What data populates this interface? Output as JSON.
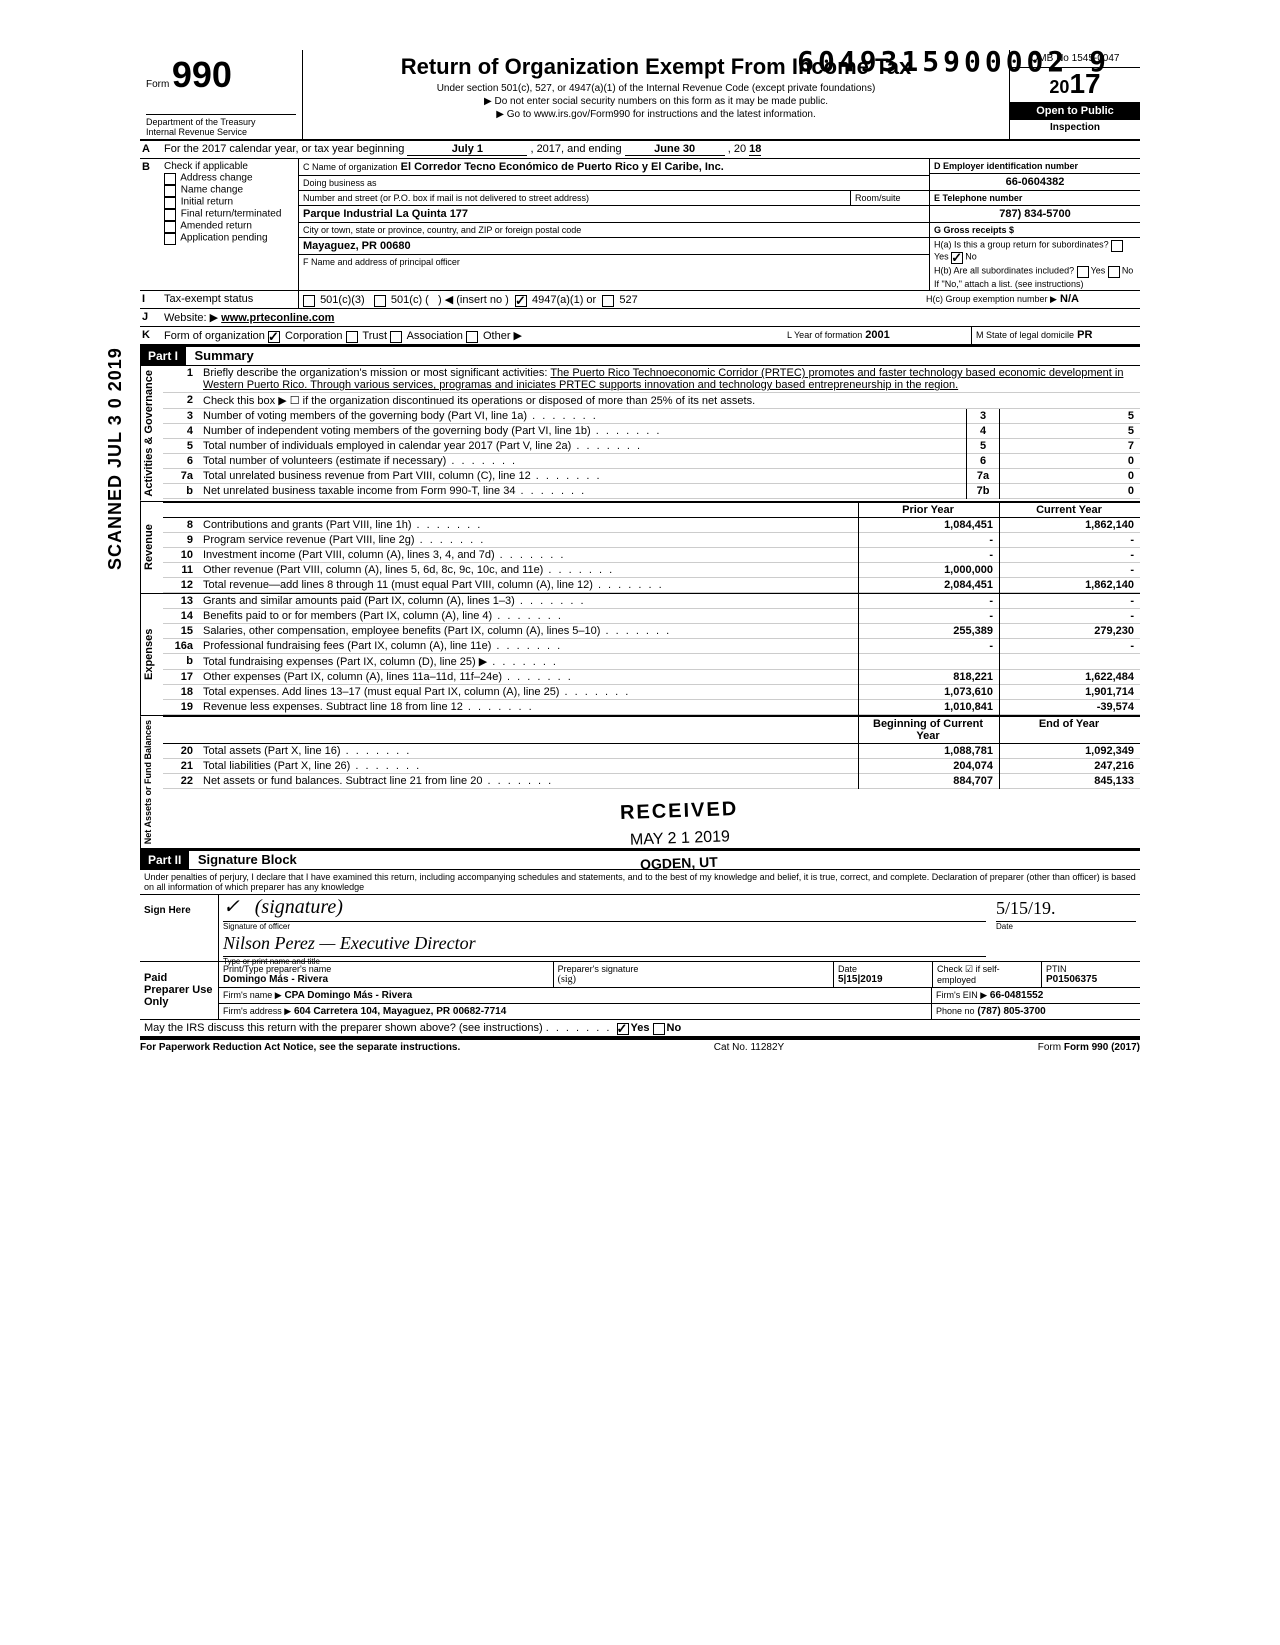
{
  "doc_id": "6049315900002 9",
  "scanned_date": "SCANNED  JUL 3 0 2019",
  "form": {
    "number": "990",
    "form_word": "Form",
    "dept": "Department of the Treasury",
    "irs": "Internal Revenue Service",
    "title": "Return of Organization Exempt From Income Tax",
    "sub1": "Under section 501(c), 527, or 4947(a)(1) of the Internal Revenue Code (except private foundations)",
    "sub2": "▶ Do not enter social security numbers on this form as it may be made public.",
    "sub3": "▶ Go to www.irs.gov/Form990 for instructions and the latest information.",
    "omb": "OMB No 1545-0047",
    "year": "2017",
    "open_public": "Open to Public",
    "inspection": "Inspection"
  },
  "row_a": {
    "label": "A",
    "text_pre": "For the 2017 calendar year, or tax year beginning",
    "begin": "July 1",
    "mid": ", 2017, and ending",
    "end": "June 30",
    "year_suffix": ", 20",
    "year_val": "18"
  },
  "row_b": {
    "label": "B",
    "check_label": "Check if applicable",
    "items": [
      "Address change",
      "Name change",
      "Initial return",
      "Final return/terminated",
      "Amended return",
      "Application pending"
    ]
  },
  "row_c": {
    "label_c": "C Name of organization",
    "org": "El Corredor Tecno Económico de Puerto Rico y El Caribe, Inc.",
    "dba_label": "Doing business as",
    "addr_label": "Number and street (or P.O. box if mail is not delivered to street address)",
    "room_label": "Room/suite",
    "addr": "Parque Industrial La Quinta 177",
    "city_label": "City or town, state or province, country, and ZIP or foreign postal code",
    "city": "Mayaguez, PR 00680",
    "f_label": "F Name and address of principal officer"
  },
  "row_d": {
    "label": "D Employer identification number",
    "val": "66-0604382"
  },
  "row_e": {
    "label": "E Telephone number",
    "val": "787) 834-5700"
  },
  "row_g": {
    "label": "G Gross receipts $"
  },
  "row_h": {
    "ha": "H(a) Is this a group return for subordinates?",
    "hb": "H(b) Are all subordinates included?",
    "hnote": "If \"No,\" attach a list. (see instructions)",
    "hc": "H(c) Group exemption number ▶",
    "hc_val": "N/A"
  },
  "row_i": {
    "label": "I",
    "text": "Tax-exempt status",
    "opts": [
      "501(c)(3)",
      "501(c) (",
      "4947(a)(1) or",
      "527"
    ],
    "insert": "◀ (insert no )"
  },
  "row_j": {
    "label": "J",
    "text": "Website: ▶",
    "val": "www.prteconline.com"
  },
  "row_k": {
    "label": "K",
    "text": "Form of organization",
    "opts": [
      "Corporation",
      "Trust",
      "Association",
      "Other ▶"
    ],
    "yof": "L Year of formation",
    "yof_val": "2001",
    "state": "M State of legal domicile",
    "state_val": "PR"
  },
  "part1": {
    "header": "Part I",
    "title": "Summary",
    "line1_lbl": "1",
    "line1": "Briefly describe the organization's mission or most significant activities:",
    "mission": "The Puerto Rico Technoeconomic Corridor (PRTEC) promotes and faster technology based economic development in Western Puerto Rico. Through various services, programas and iniciates PRTEC supports innovation and technology based entrepreneurship in the region.",
    "line2_lbl": "2",
    "line2": "Check this box ▶ ☐ if the organization discontinued its operations or disposed of more than 25% of its net assets.",
    "gov_label": "Activities & Governance",
    "rev_label": "Revenue",
    "exp_label": "Expenses",
    "net_label": "Net Assets or\nFund Balances",
    "prior_year": "Prior Year",
    "current_year": "Current Year",
    "beg_year": "Beginning of Current Year",
    "end_year": "End of Year",
    "rows_gov": [
      {
        "n": "3",
        "d": "Number of voting members of the governing body (Part VI, line 1a)",
        "box": "3",
        "v": "5"
      },
      {
        "n": "4",
        "d": "Number of independent voting members of the governing body (Part VI, line 1b)",
        "box": "4",
        "v": "5"
      },
      {
        "n": "5",
        "d": "Total number of individuals employed in calendar year 2017 (Part V, line 2a)",
        "box": "5",
        "v": "7"
      },
      {
        "n": "6",
        "d": "Total number of volunteers (estimate if necessary)",
        "box": "6",
        "v": "0"
      },
      {
        "n": "7a",
        "d": "Total unrelated business revenue from Part VIII, column (C), line 12",
        "box": "7a",
        "v": "0"
      },
      {
        "n": "b",
        "d": "Net unrelated business taxable income from Form 990-T, line 34",
        "box": "7b",
        "v": "0"
      }
    ],
    "rows_rev": [
      {
        "n": "8",
        "d": "Contributions and grants (Part VIII, line 1h)",
        "p": "1,084,451",
        "c": "1,862,140"
      },
      {
        "n": "9",
        "d": "Program service revenue (Part VIII, line 2g)",
        "p": "-",
        "c": "-"
      },
      {
        "n": "10",
        "d": "Investment income (Part VIII, column (A), lines 3, 4, and 7d)",
        "p": "-",
        "c": "-"
      },
      {
        "n": "11",
        "d": "Other revenue (Part VIII, column (A), lines 5, 6d, 8c, 9c, 10c, and 11e)",
        "p": "1,000,000",
        "c": "-"
      },
      {
        "n": "12",
        "d": "Total revenue—add lines 8 through 11 (must equal Part VIII, column (A), line 12)",
        "p": "2,084,451",
        "c": "1,862,140"
      }
    ],
    "rows_exp": [
      {
        "n": "13",
        "d": "Grants and similar amounts paid (Part IX, column (A), lines 1–3)",
        "p": "-",
        "c": "-"
      },
      {
        "n": "14",
        "d": "Benefits paid to or for members (Part IX, column (A), line 4)",
        "p": "-",
        "c": "-"
      },
      {
        "n": "15",
        "d": "Salaries, other compensation, employee benefits (Part IX, column (A), lines 5–10)",
        "p": "255,389",
        "c": "279,230"
      },
      {
        "n": "16a",
        "d": "Professional fundraising fees (Part IX, column (A), line 11e)",
        "p": "-",
        "c": "-"
      },
      {
        "n": "b",
        "d": "Total fundraising expenses (Part IX, column (D), line 25) ▶",
        "p": "",
        "c": ""
      },
      {
        "n": "17",
        "d": "Other expenses (Part IX, column (A), lines 11a–11d, 11f–24e)",
        "p": "818,221",
        "c": "1,622,484"
      },
      {
        "n": "18",
        "d": "Total expenses. Add lines 13–17 (must equal Part IX, column (A), line 25)",
        "p": "1,073,610",
        "c": "1,901,714"
      },
      {
        "n": "19",
        "d": "Revenue less expenses. Subtract line 18 from line 12",
        "p": "1,010,841",
        "c": "-39,574"
      }
    ],
    "rows_net": [
      {
        "n": "20",
        "d": "Total assets (Part X, line 16)",
        "p": "1,088,781",
        "c": "1,092,349"
      },
      {
        "n": "21",
        "d": "Total liabilities (Part X, line 26)",
        "p": "204,074",
        "c": "247,216"
      },
      {
        "n": "22",
        "d": "Net assets or fund balances. Subtract line 21 from line 20",
        "p": "884,707",
        "c": "845,133"
      }
    ]
  },
  "part2": {
    "header": "Part II",
    "title": "Signature Block",
    "decl": "Under penalties of perjury, I declare that I have examined this return, including accompanying schedules and statements, and to the best of my knowledge and belief, it is true, correct, and complete. Declaration of preparer (other than officer) is based on all information of which preparer has any knowledge",
    "sign_here": "Sign Here",
    "sig_of_officer": "Signature of officer",
    "date_lbl": "Date",
    "date_val": "5/15/19.",
    "name_title_lbl": "Type or print name and title",
    "name_title_val": "Nilson Perez  —  Executive Director",
    "paid": "Paid Preparer Use Only",
    "prep_name_lbl": "Print/Type preparer's name",
    "prep_name": "Domingo Más - Rivera",
    "prep_sig_lbl": "Preparer's signature",
    "prep_date": "5|15|2019",
    "check_self": "Check ☑ if self-employed",
    "ptin_lbl": "PTIN",
    "ptin": "P01506375",
    "firm_name_lbl": "Firm's name  ▶",
    "firm_name": "CPA Domingo Más - Rivera",
    "firm_ein_lbl": "Firm's EIN ▶",
    "firm_ein": "66-0481552",
    "firm_addr_lbl": "Firm's address ▶",
    "firm_addr": "604 Carretera 104, Mayaguez, PR 00682-7714",
    "phone_lbl": "Phone no",
    "phone": "(787) 805-3700",
    "may_irs": "May the IRS discuss this return with the preparer shown above? (see instructions)"
  },
  "footer": {
    "left": "For Paperwork Reduction Act Notice, see the separate instructions.",
    "mid": "Cat No. 11282Y",
    "right": "Form 990 (2017)"
  },
  "stamps": {
    "received": "RECEIVED",
    "date": "MAY 2 1 2019",
    "ogden": "OGDEN, UT"
  },
  "yes": "Yes",
  "no": "No"
}
